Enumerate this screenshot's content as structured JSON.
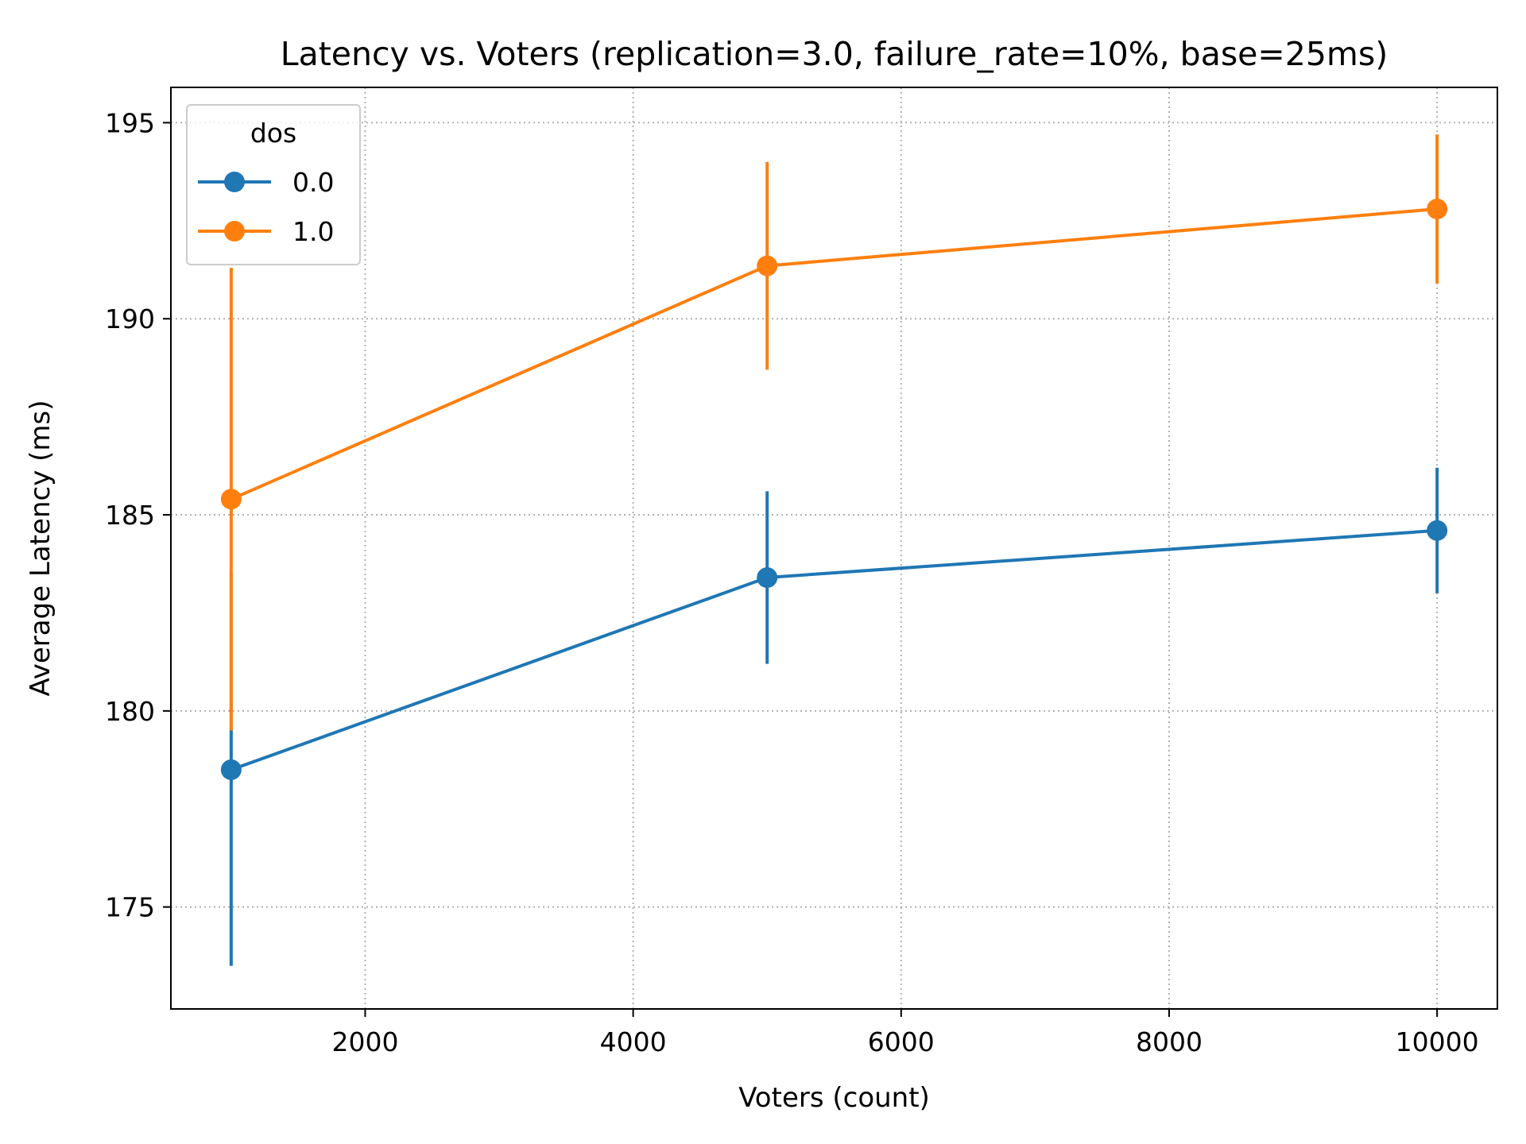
{
  "chart_data": {
    "type": "line",
    "title": "Latency vs. Voters (replication=3.0, failure_rate=10%, base=25ms)",
    "xlabel": "Voters (count)",
    "ylabel": "Average Latency (ms)",
    "x": [
      1000,
      5000,
      10000
    ],
    "xlim": [
      550,
      10450
    ],
    "ylim": [
      172.4,
      195.9
    ],
    "xticks": [
      2000,
      4000,
      6000,
      8000,
      10000
    ],
    "xtick_labels": [
      "2000",
      "4000",
      "6000",
      "8000",
      "10000"
    ],
    "yticks": [
      175,
      180,
      185,
      190,
      195
    ],
    "ytick_labels": [
      "175",
      "180",
      "185",
      "190",
      "195"
    ],
    "grid": true,
    "grid_style": "dotted",
    "legend": {
      "title": "dos",
      "placement": "top-left"
    },
    "series": [
      {
        "name": "0.0",
        "color": "#1f77b4",
        "values": [
          178.5,
          183.4,
          184.6
        ],
        "error": [
          5.0,
          2.2,
          1.6
        ]
      },
      {
        "name": "1.0",
        "color": "#ff7f0e",
        "values": [
          185.4,
          191.35,
          192.8
        ],
        "error": [
          5.9,
          2.65,
          1.9
        ]
      }
    ]
  }
}
